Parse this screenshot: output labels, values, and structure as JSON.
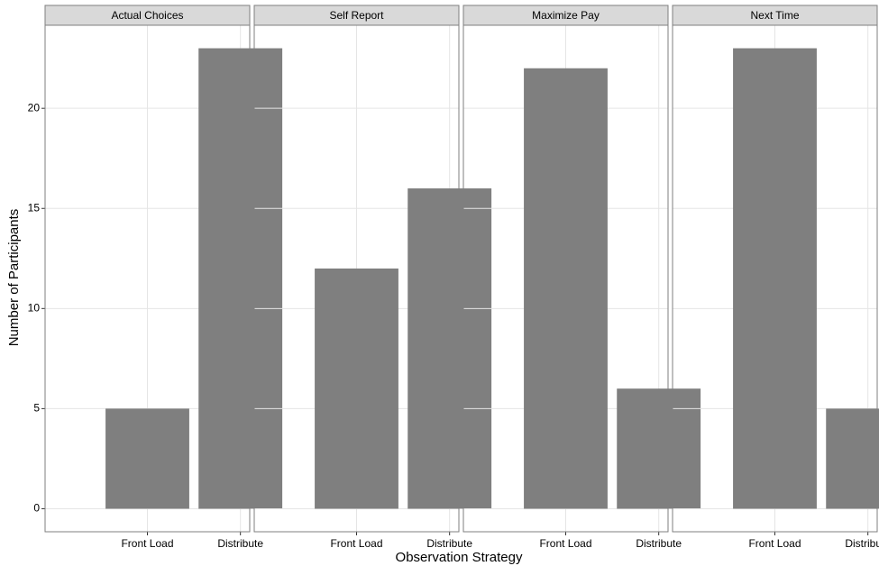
{
  "chart_data": {
    "type": "bar",
    "xlabel": "Observation Strategy",
    "ylabel": "Number of Participants",
    "categories": [
      "Front Load",
      "Distribute"
    ],
    "color": "#7f7f7f",
    "ylim": [
      -1.15,
      24.15
    ],
    "yticks": [
      0,
      5,
      10,
      15,
      20
    ],
    "grid": true,
    "facets": [
      {
        "title": "Actual Choices",
        "values": [
          5,
          23
        ]
      },
      {
        "title": "Self Report",
        "values": [
          12,
          16
        ]
      },
      {
        "title": "Maximize Pay",
        "values": [
          22,
          6
        ]
      },
      {
        "title": "Next Time",
        "values": [
          23,
          5
        ]
      }
    ]
  }
}
